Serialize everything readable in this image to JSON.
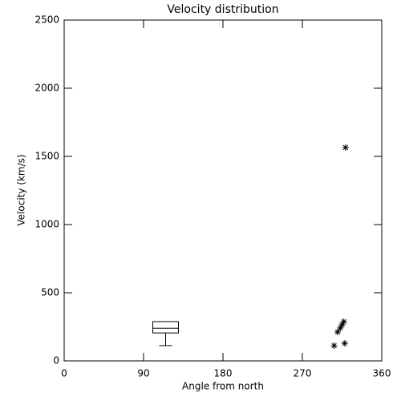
{
  "chart_data": {
    "type": "box",
    "title": "Velocity distribution",
    "x_label": "Angle from north",
    "y_label": "Velocity (km/s)",
    "xlim": [
      0,
      360
    ],
    "xticks": [
      0,
      90,
      180,
      270,
      360
    ],
    "ylim": [
      0,
      2500
    ],
    "yticks": [
      0,
      500,
      1000,
      1500,
      2000,
      2500
    ],
    "color": "#000000",
    "box": {
      "x": 115,
      "min": 112,
      "q1": 205,
      "median": 240,
      "q3": 288,
      "max": 288
    },
    "points": {
      "x": [
        319,
        306,
        310,
        313,
        315,
        317,
        318
      ],
      "y": [
        1565,
        112,
        212,
        241,
        265,
        288,
        129
      ]
    }
  }
}
